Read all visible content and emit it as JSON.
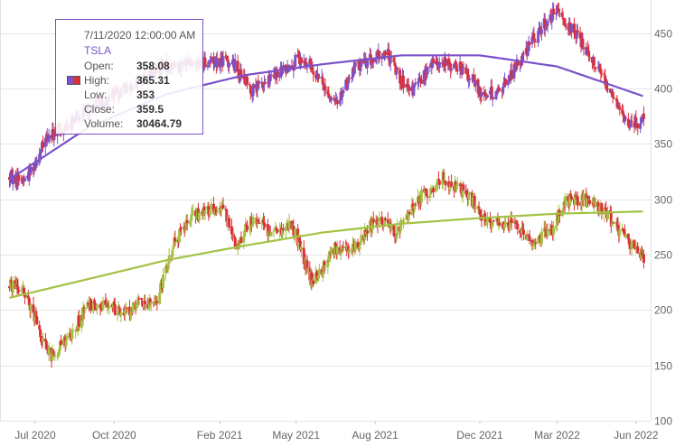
{
  "chart_data": {
    "type": "candlestick",
    "x_ticks": [
      "Jul 2020",
      "Oct 2020",
      "Feb 2021",
      "May 2021",
      "Aug 2021",
      "Dec 2021",
      "Mar 2022",
      "Jun 2022"
    ],
    "y_ticks": [
      "100",
      "150",
      "200",
      "250",
      "300",
      "350",
      "400",
      "450"
    ],
    "ylim": [
      100,
      480
    ],
    "grid": true,
    "colors": {
      "up": "#7b52c9",
      "down": "#d9303a",
      "up_lower": "#a3c244",
      "trend_upper": "#7b52c9",
      "trend_lower": "#a3c244",
      "gridline": "#e6e6e6"
    },
    "series": [
      {
        "key_points": [
          [
            "2020-06-01",
            320
          ],
          [
            "2020-06-20",
            318
          ],
          [
            "2020-07-15",
            355
          ],
          [
            "2020-08-10",
            368
          ],
          [
            "2020-09-10",
            385
          ],
          [
            "2020-10-10",
            398
          ],
          [
            "2020-11-20",
            418
          ],
          [
            "2020-12-20",
            422
          ],
          [
            "2021-01-15",
            425
          ],
          [
            "2021-02-15",
            425
          ],
          [
            "2021-03-10",
            398
          ],
          [
            "2021-04-01",
            408
          ],
          [
            "2021-05-01",
            425
          ],
          [
            "2021-05-20",
            420
          ],
          [
            "2021-06-15",
            385
          ],
          [
            "2021-07-10",
            420
          ],
          [
            "2021-08-15",
            432
          ],
          [
            "2021-09-10",
            395
          ],
          [
            "2021-10-10",
            425
          ],
          [
            "2021-11-10",
            418
          ],
          [
            "2021-12-05",
            395
          ],
          [
            "2021-12-25",
            398
          ],
          [
            "2022-01-20",
            430
          ],
          [
            "2022-02-10",
            455
          ],
          [
            "2022-03-01",
            470
          ],
          [
            "2022-04-01",
            440
          ],
          [
            "2022-04-25",
            410
          ],
          [
            "2022-05-20",
            370
          ],
          [
            "2022-06-05",
            368
          ],
          [
            "2022-06-10",
            378
          ]
        ],
        "trend": [
          [
            "2020-06-01",
            318
          ],
          [
            "2020-09-01",
            365
          ],
          [
            "2020-12-01",
            395
          ],
          [
            "2021-03-01",
            412
          ],
          [
            "2021-06-01",
            422
          ],
          [
            "2021-09-01",
            430
          ],
          [
            "2021-12-01",
            430
          ],
          [
            "2022-03-01",
            420
          ],
          [
            "2022-06-10",
            393
          ]
        ],
        "tooltip": {
          "date": "7/11/2020 12:00:00 AM",
          "name": "TSLA",
          "open_label": "Open:",
          "open": "358.08",
          "high_label": "High:",
          "high": "365.31",
          "low_label": "Low:",
          "low": "353",
          "close_label": "Close:",
          "close": "359.5",
          "volume_label": "Volume:",
          "volume": "30464.79"
        }
      },
      {
        "key_points": [
          [
            "2020-06-01",
            222
          ],
          [
            "2020-06-20",
            215
          ],
          [
            "2020-07-10",
            172
          ],
          [
            "2020-07-20",
            158
          ],
          [
            "2020-08-10",
            176
          ],
          [
            "2020-09-01",
            205
          ],
          [
            "2020-09-25",
            202
          ],
          [
            "2020-10-15",
            200
          ],
          [
            "2020-11-01",
            205
          ],
          [
            "2020-11-20",
            210
          ],
          [
            "2020-12-10",
            260
          ],
          [
            "2021-01-01",
            285
          ],
          [
            "2021-02-05",
            295
          ],
          [
            "2021-02-20",
            258
          ],
          [
            "2021-03-10",
            282
          ],
          [
            "2021-04-05",
            268
          ],
          [
            "2021-04-25",
            278
          ],
          [
            "2021-05-20",
            225
          ],
          [
            "2021-06-15",
            255
          ],
          [
            "2021-07-10",
            258
          ],
          [
            "2021-08-01",
            282
          ],
          [
            "2021-08-25",
            270
          ],
          [
            "2021-09-20",
            300
          ],
          [
            "2021-10-20",
            320
          ],
          [
            "2021-11-20",
            302
          ],
          [
            "2021-12-10",
            278
          ],
          [
            "2022-01-05",
            280
          ],
          [
            "2022-02-01",
            260
          ],
          [
            "2022-02-25",
            275
          ],
          [
            "2022-03-10",
            300
          ],
          [
            "2022-04-01",
            300
          ],
          [
            "2022-04-25",
            290
          ],
          [
            "2022-05-15",
            268
          ],
          [
            "2022-06-10",
            248
          ]
        ],
        "trend": [
          [
            "2020-06-01",
            211
          ],
          [
            "2020-09-01",
            228
          ],
          [
            "2020-12-01",
            245
          ],
          [
            "2021-03-01",
            258
          ],
          [
            "2021-06-01",
            270
          ],
          [
            "2021-09-01",
            278
          ],
          [
            "2021-12-01",
            283
          ],
          [
            "2022-03-01",
            287
          ],
          [
            "2022-06-10",
            289
          ]
        ]
      }
    ]
  }
}
